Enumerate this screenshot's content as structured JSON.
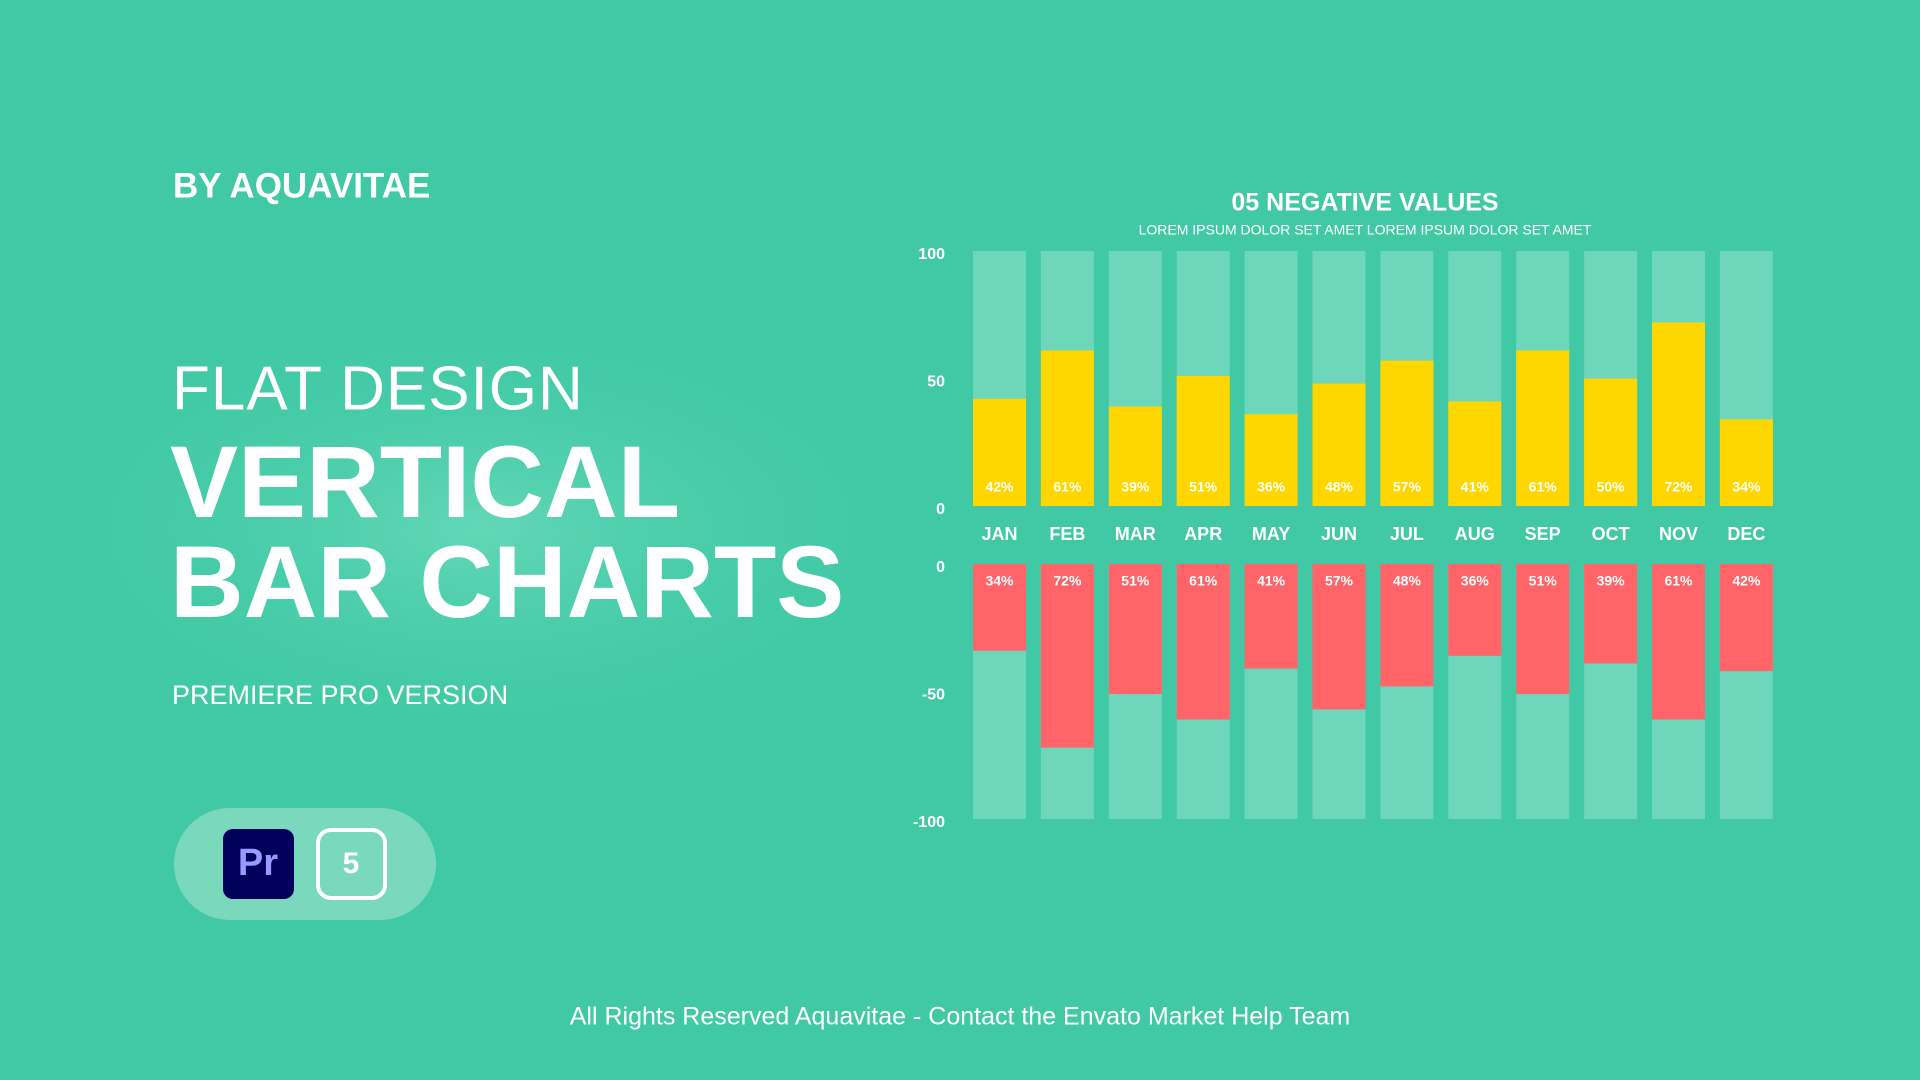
{
  "header": {
    "brand": "BY AQUAVITAE",
    "kicker": "FLAT DESIGN",
    "title_line1": "VERTICAL",
    "title_line2": "BAR CHARTS",
    "version": "PREMIERE PRO VERSION",
    "app_badge": "Pr",
    "version_badge": "5"
  },
  "footer": "All Rights Reserved Aquavitae - Contact the Envato Market Help Team",
  "chart_data": [
    {
      "type": "bar",
      "title": "05 NEGATIVE VALUES",
      "subtitle": "LOREM IPSUM DOLOR SET AMET LOREM IPSUM DOLOR SET AMET",
      "categories": [
        "JAN",
        "FEB",
        "MAR",
        "APR",
        "MAY",
        "JUN",
        "JUL",
        "AUG",
        "SEP",
        "OCT",
        "NOV",
        "DEC"
      ],
      "values": [
        42,
        61,
        39,
        51,
        36,
        48,
        57,
        41,
        61,
        50,
        72,
        34
      ],
      "value_labels": [
        "42%",
        "61%",
        "39%",
        "51%",
        "36%",
        "48%",
        "57%",
        "41%",
        "61%",
        "50%",
        "72%",
        "34%"
      ],
      "color": "#ffd600",
      "ylim": [
        0,
        100
      ],
      "yticks": [
        0,
        50,
        100
      ]
    },
    {
      "type": "bar",
      "values": [
        -34,
        -72,
        -51,
        -61,
        -41,
        -57,
        -48,
        -36,
        -51,
        -39,
        -61,
        -42
      ],
      "value_labels": [
        "34%",
        "72%",
        "51%",
        "61%",
        "41%",
        "57%",
        "48%",
        "36%",
        "51%",
        "39%",
        "61%",
        "42%"
      ],
      "color": "#ff6468",
      "ylim": [
        -100,
        0
      ],
      "yticks": [
        0,
        -50,
        -100
      ]
    }
  ]
}
